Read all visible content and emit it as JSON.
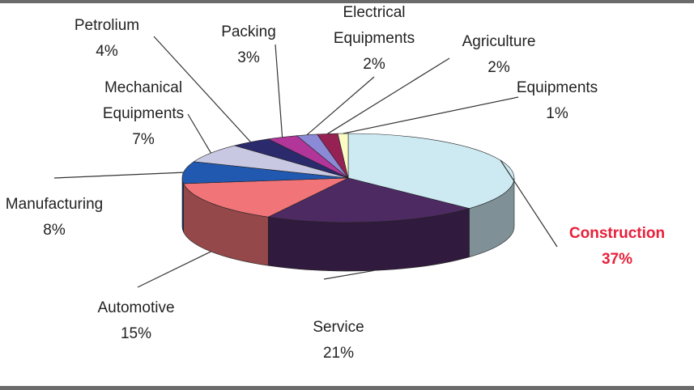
{
  "chart_data": {
    "type": "pie3d",
    "categories": [
      "Construction",
      "Service",
      "Automotive",
      "Manufacturing",
      "Mechanical Equipments",
      "Petrolium",
      "Packing",
      "Electrical Equipments",
      "Agriculture",
      "Equipments"
    ],
    "values": [
      37,
      21,
      15,
      8,
      7,
      4,
      3,
      2,
      2,
      1
    ],
    "value_labels": [
      "37%",
      "21%",
      "15%",
      "8%",
      "7%",
      "4%",
      "3%",
      "2%",
      "2%",
      "1%"
    ],
    "colors": [
      "#cdeaf2",
      "#4d2a62",
      "#f07478",
      "#2158b0",
      "#c9c8e2",
      "#2b2a6c",
      "#b2369a",
      "#8a8ad6",
      "#962254",
      "#fbfbc6"
    ],
    "highlight": "Construction"
  }
}
